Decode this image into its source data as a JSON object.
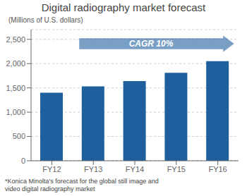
{
  "chart_data": {
    "type": "bar",
    "title": "Digital radiography market forecast",
    "subtitle": "(Millions of U.S. dollars)",
    "footnote": "*Konica Minolta's forecast for the global still image and\nvideo digital radiography market",
    "annotations": [
      "CAGR 10%"
    ],
    "categories": [
      "FY12",
      "FY13",
      "FY14",
      "FY15",
      "FY16"
    ],
    "values": [
      1400,
      1530,
      1640,
      1810,
      2050
    ],
    "color": "#1F5F9E",
    "ylim": [
      0,
      2700
    ],
    "yticks": [
      0,
      500,
      {
        "value": 1000,
        "label": "1,000"
      },
      {
        "value": 1500,
        "label": "1,500"
      },
      {
        "value": 2000,
        "label": "2,000"
      },
      {
        "value": 2500,
        "label": "2,500"
      }
    ],
    "grid": true
  }
}
